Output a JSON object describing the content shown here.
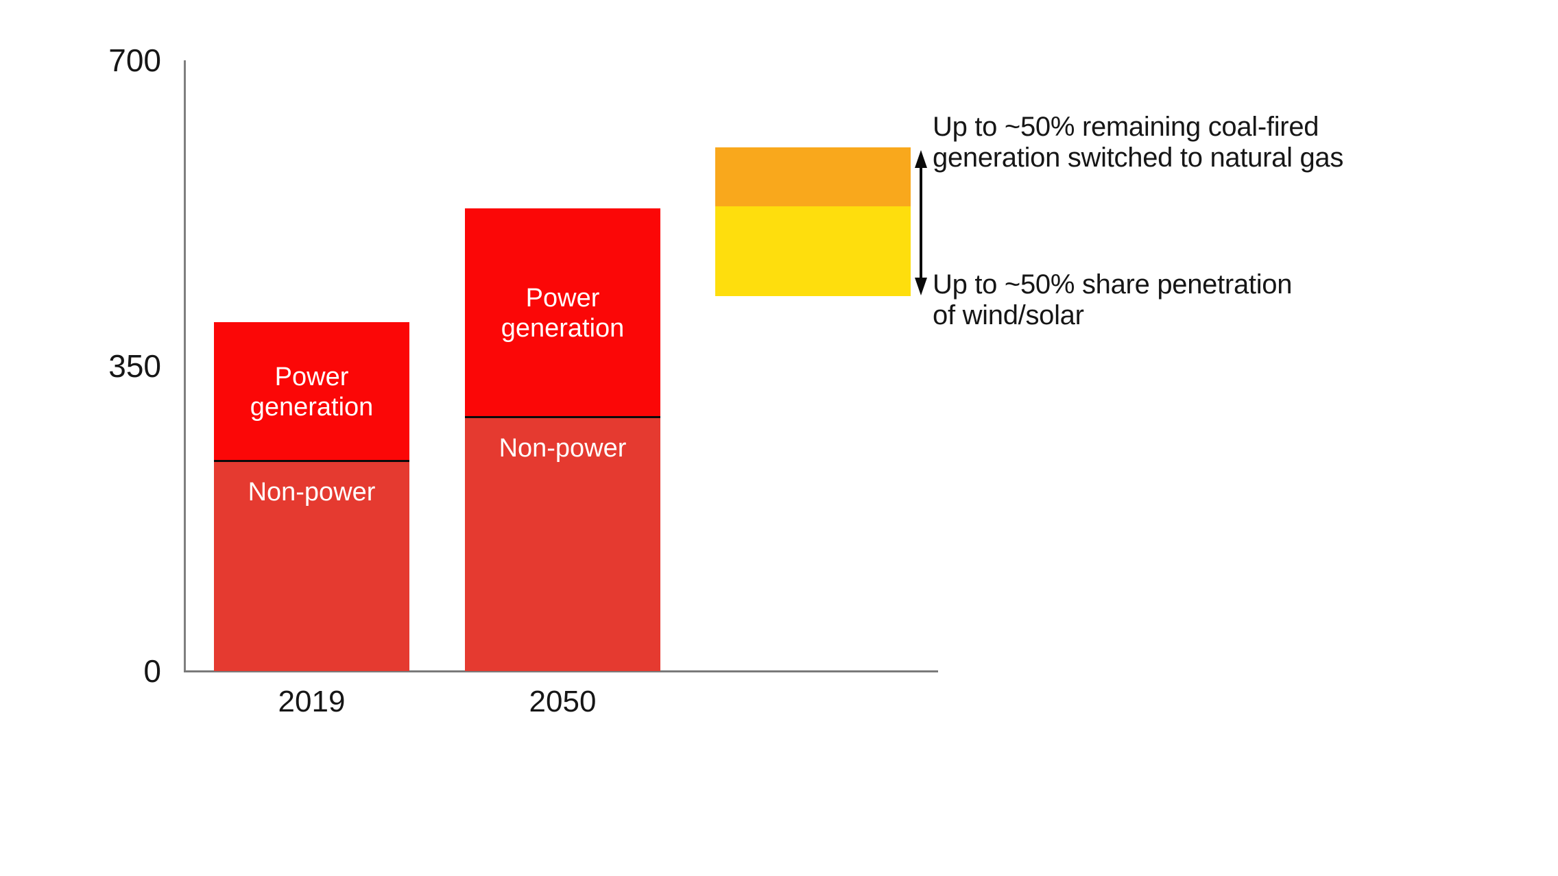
{
  "chart_data": {
    "type": "bar",
    "stacked": true,
    "title": "",
    "xlabel": "",
    "ylabel": "",
    "categories": [
      "2019",
      "2050"
    ],
    "series": [
      {
        "name": "Non-power",
        "values": [
          240,
          290
        ],
        "color": "#e53a30"
      },
      {
        "name": "Power generation",
        "values": [
          160,
          240
        ],
        "color": "#fb0707"
      }
    ],
    "totals": [
      400,
      530
    ],
    "ylim": [
      0,
      700
    ],
    "yticks": [
      0,
      350,
      700
    ],
    "grid": false,
    "legend": "labels drawn inside bar segments",
    "scenario_box": {
      "description": "floating stacked range box right of 2050 bar",
      "segments": [
        {
          "name": "coal switched to natural gas",
          "from": 533,
          "to": 600,
          "color": "#f9a81c"
        },
        {
          "name": "wind/solar share penetration",
          "from": 430,
          "to": 533,
          "color": "#fede0d"
        }
      ]
    },
    "annotations": [
      {
        "line1": "Up to ~50% remaining coal-fired",
        "line2": "generation switched to natural gas"
      },
      {
        "line1": "Up to ~50% share penetration",
        "line2": "of wind/solar"
      }
    ]
  }
}
